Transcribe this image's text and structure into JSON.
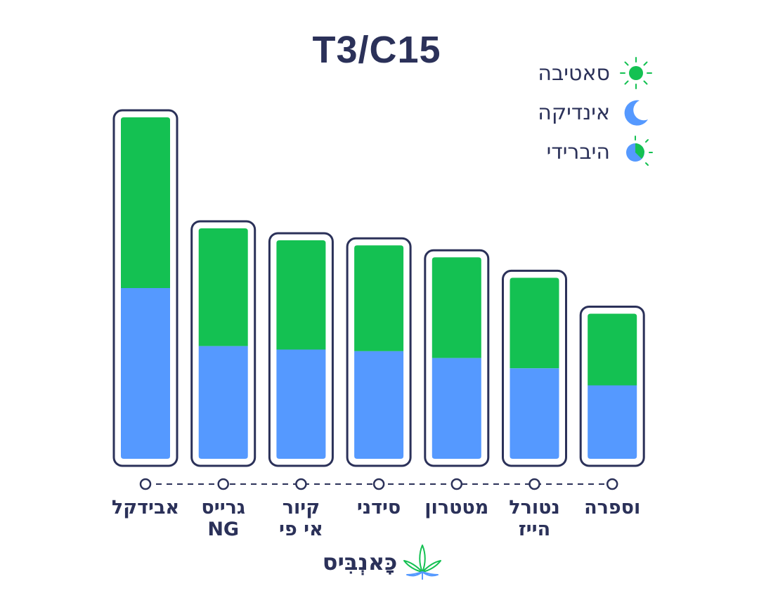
{
  "chart_data": {
    "type": "bar",
    "stacked": true,
    "title": "T3/C15",
    "categories": [
      "אבידקל",
      "גרייס NG",
      "קיור אי פי",
      "סידני",
      "מטטרון",
      "נטורל הייז",
      "וספרה"
    ],
    "category_lines": [
      [
        "אבידקל"
      ],
      [
        "גרייס",
        "NG"
      ],
      [
        "קיור",
        "אי פי"
      ],
      [
        "סידני"
      ],
      [
        "מטטרון"
      ],
      [
        "נטורל",
        "הייז"
      ],
      [
        "וספרה"
      ]
    ],
    "series": [
      {
        "name": "אינדיקה",
        "color": "#5599ff",
        "values": [
          50,
          33,
          32,
          31.5,
          29.5,
          26.5,
          21.5
        ]
      },
      {
        "name": "סאטיבה",
        "color": "#14c152",
        "values": [
          50,
          34.5,
          32,
          31,
          29.5,
          26.5,
          21
        ]
      }
    ],
    "ylim": [
      0,
      100
    ],
    "grid": false,
    "legend_position": "top-right"
  },
  "legend": {
    "items": [
      {
        "label": "סאטיבה",
        "icon": "sun-icon"
      },
      {
        "label": "אינדיקה",
        "icon": "moon-icon"
      },
      {
        "label": "היברידי",
        "icon": "hybrid-sun-moon-icon"
      }
    ]
  },
  "brand": {
    "name": "כָּאנְבִּיס",
    "icon": "cannabis-leaf-logo"
  },
  "colors": {
    "frame": "#2b3159",
    "text": "#2b3159",
    "sativa": "#14c152",
    "indica": "#5599ff"
  }
}
